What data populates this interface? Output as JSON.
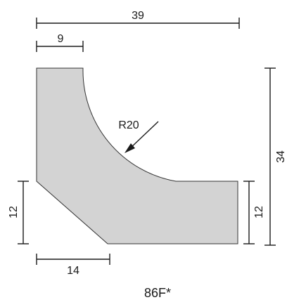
{
  "profile_code": "86F*",
  "dimensions": {
    "overall_width": "39",
    "top_flat": "9",
    "overall_height": "34",
    "left_height": "12",
    "right_height": "12",
    "bottom_flat": "14",
    "radius": "R20"
  },
  "colors": {
    "profile_fill": "#d3d3d3",
    "profile_stroke": "#333333",
    "dimension_stroke": "#1a1a1a"
  }
}
